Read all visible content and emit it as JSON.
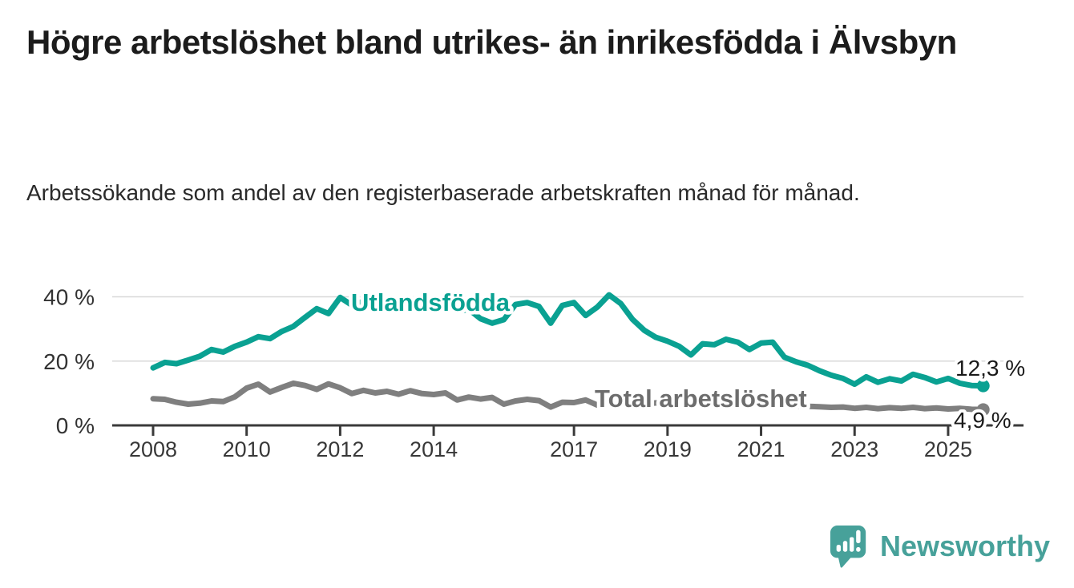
{
  "header": {
    "title": "Högre arbetslöshet bland utrikes- än inrikesfödda i Älvsbyn",
    "subtitle": "Arbetssökande som andel av den registerbaserade arbetskraften månad för månad."
  },
  "chart_data": {
    "type": "line",
    "title": "Högre arbetslöshet bland utrikes- än inrikesfödda i Älvsbyn",
    "xlabel": "",
    "ylabel": "%",
    "grid": "horizontal",
    "legend_position": "inline-labels",
    "x_axis": {
      "ticks": [
        2008,
        2010,
        2012,
        2014,
        2017,
        2019,
        2021,
        2023,
        2025
      ],
      "range": [
        2007.1,
        2026.6
      ]
    },
    "y_axis": {
      "ticks": [
        {
          "value": 0,
          "label": "0 %"
        },
        {
          "value": 20,
          "label": "20 %"
        },
        {
          "value": 40,
          "label": "40 %"
        }
      ],
      "range": [
        0,
        44
      ]
    },
    "x": [
      2008,
      2008.25,
      2008.5,
      2008.75,
      2009,
      2009.25,
      2009.5,
      2009.75,
      2010,
      2010.25,
      2010.5,
      2010.75,
      2011,
      2011.25,
      2011.5,
      2011.75,
      2012,
      2012.25,
      2012.5,
      2012.75,
      2013,
      2013.25,
      2013.5,
      2013.75,
      2014,
      2014.25,
      2014.5,
      2014.75,
      2015,
      2015.25,
      2015.5,
      2015.75,
      2016,
      2016.25,
      2016.5,
      2016.75,
      2017,
      2017.25,
      2017.5,
      2017.75,
      2018,
      2018.25,
      2018.5,
      2018.75,
      2019,
      2019.25,
      2019.5,
      2019.75,
      2020,
      2020.25,
      2020.5,
      2020.75,
      2021,
      2021.25,
      2021.5,
      2021.75,
      2022,
      2022.25,
      2022.5,
      2022.75,
      2023,
      2023.25,
      2023.5,
      2023.75,
      2024,
      2024.25,
      2024.5,
      2024.75,
      2025,
      2025.25,
      2025.5,
      2025.75
    ],
    "series": [
      {
        "name": "Utlandsfödda",
        "color": "#0aa192",
        "end_label": "12,3 %",
        "end_value": 12.3,
        "values": [
          17.9,
          19.6,
          19.2,
          20.3,
          21.5,
          23.6,
          22.8,
          24.6,
          25.9,
          27.6,
          27.0,
          29.2,
          30.8,
          33.6,
          36.3,
          34.8,
          39.8,
          37.4,
          38.6,
          37.2,
          38.3,
          36.6,
          37.8,
          36.9,
          36.2,
          37.0,
          35.4,
          36.1,
          33.2,
          31.8,
          32.9,
          37.6,
          38.2,
          37.0,
          31.8,
          37.3,
          38.2,
          34.2,
          36.8,
          40.6,
          37.9,
          33.0,
          29.6,
          27.4,
          26.2,
          24.6,
          21.9,
          25.4,
          25.1,
          26.8,
          25.9,
          23.6,
          25.6,
          25.9,
          21.2,
          19.8,
          18.7,
          17.0,
          15.6,
          14.6,
          12.8,
          15.1,
          13.4,
          14.5,
          13.8,
          15.9,
          14.9,
          13.5,
          14.6,
          13.1,
          12.4,
          12.3
        ]
      },
      {
        "name": "Total arbetslöshet",
        "color": "#7f7f7f",
        "label_color": "#6d6d6d",
        "end_label": "4,9 %",
        "end_value": 4.9,
        "values": [
          8.3,
          8.1,
          7.2,
          6.6,
          6.9,
          7.6,
          7.4,
          8.9,
          11.6,
          12.8,
          10.4,
          11.8,
          13.1,
          12.4,
          11.2,
          12.9,
          11.7,
          9.9,
          10.9,
          10.1,
          10.6,
          9.7,
          10.8,
          9.9,
          9.6,
          10.1,
          7.9,
          8.8,
          8.2,
          8.7,
          6.6,
          7.6,
          8.1,
          7.7,
          5.7,
          7.2,
          7.1,
          7.9,
          6.3,
          7.4,
          7.0,
          7.3,
          6.6,
          7.0,
          6.8,
          7.1,
          6.4,
          6.9,
          7.2,
          7.8,
          7.1,
          6.7,
          6.6,
          6.8,
          6.1,
          6.0,
          5.9,
          5.8,
          5.6,
          5.7,
          5.3,
          5.6,
          5.2,
          5.5,
          5.3,
          5.6,
          5.2,
          5.4,
          5.1,
          5.3,
          5.0,
          4.9
        ]
      }
    ],
    "colors": {
      "grid": "#d8d8d8",
      "axis": "#3a3a3a"
    }
  },
  "footer": {
    "brand": "Newsworthy",
    "brand_color": "#47a19a",
    "logo_icon": "newsworthy-bubble-chart-icon"
  }
}
